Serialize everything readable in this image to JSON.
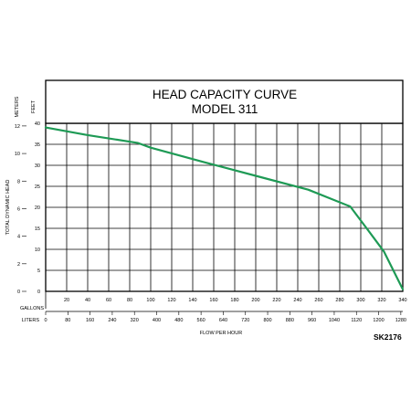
{
  "chart_data": {
    "type": "line",
    "title": [
      "HEAD CAPACITY CURVE",
      "MODEL 311"
    ],
    "xlabel": "FLOW PER HOUR",
    "ylabel": "TOTAL DYNAMIC HEAD",
    "units": {
      "x_primary": "GALLONS",
      "x_secondary": "LITERS",
      "y_primary": "FEET",
      "y_secondary": "METERS"
    },
    "x_ticks_gallons": [
      "20",
      "40",
      "60",
      "80",
      "100",
      "120",
      "140",
      "160",
      "180",
      "200",
      "220",
      "240",
      "260",
      "280",
      "300",
      "320",
      "340"
    ],
    "x_ticks_liters": [
      "0",
      "80",
      "160",
      "240",
      "320",
      "400",
      "480",
      "560",
      "640",
      "720",
      "800",
      "880",
      "960",
      "1040",
      "1120",
      "1200",
      "1280"
    ],
    "y_ticks_feet": [
      "0",
      "5",
      "10",
      "15",
      "20",
      "25",
      "30",
      "35",
      "40"
    ],
    "y_ticks_meters": [
      "0",
      "2",
      "4",
      "6",
      "8",
      "10",
      "12"
    ],
    "xlim": [
      0,
      340
    ],
    "ylim": [
      0,
      40
    ],
    "grid": true,
    "series": [
      {
        "x": [
          0,
          40,
          88,
          100,
          150,
          200,
          250,
          290,
          305,
          322,
          340
        ],
        "y": [
          39,
          37.2,
          35.3,
          34.2,
          30.8,
          27.5,
          24.2,
          20.2,
          15.2,
          9.5,
          0.5
        ],
        "color": "#1e9a55"
      }
    ],
    "figure_code": "SK2176"
  }
}
